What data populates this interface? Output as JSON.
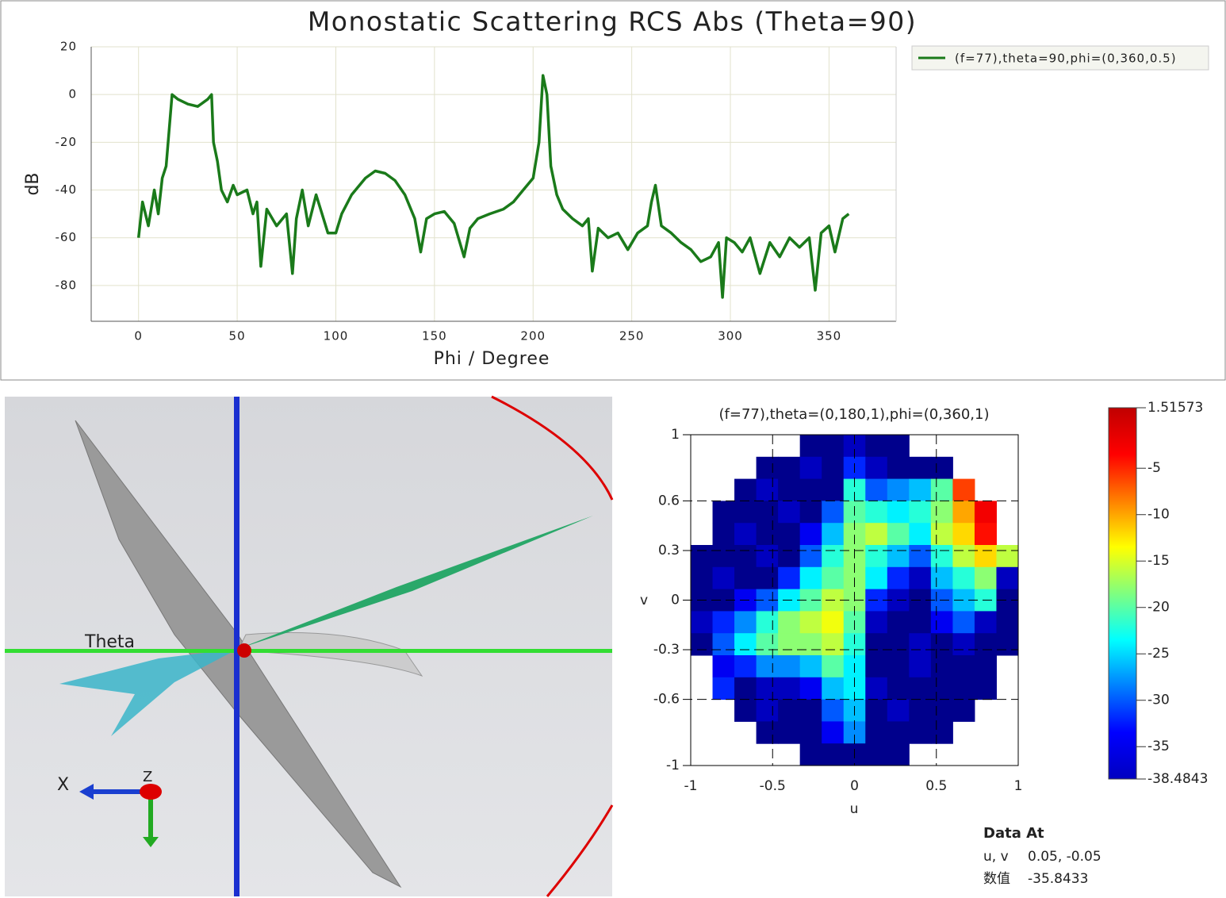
{
  "chart_data": [
    {
      "type": "line",
      "title": "Monostatic Scattering RCS Abs (Theta=90)",
      "x_label": "Phi / Degree",
      "y_label": "dB",
      "x": [
        0,
        2,
        5,
        8,
        10,
        12,
        14,
        16,
        17,
        20,
        25,
        30,
        35,
        37,
        38,
        40,
        42,
        45,
        48,
        50,
        55,
        58,
        60,
        62,
        65,
        70,
        75,
        78,
        80,
        83,
        86,
        90,
        93,
        96,
        100,
        103,
        108,
        115,
        120,
        125,
        130,
        135,
        140,
        143,
        146,
        150,
        155,
        160,
        165,
        168,
        172,
        178,
        185,
        190,
        195,
        200,
        203,
        205,
        207,
        209,
        212,
        215,
        220,
        225,
        228,
        230,
        233,
        238,
        243,
        248,
        253,
        258,
        260,
        262,
        265,
        270,
        275,
        280,
        285,
        290,
        294,
        296,
        298,
        302,
        306,
        310,
        315,
        320,
        325,
        330,
        335,
        340,
        343,
        346,
        350,
        353,
        357,
        360
      ],
      "series": [
        {
          "name": "(f=77),theta=90,phi=(0,360,0.5)",
          "color": "#1a7a1a",
          "values": [
            -60,
            -45,
            -55,
            -40,
            -50,
            -35,
            -30,
            -10,
            0,
            -2,
            -4,
            -5,
            -2,
            0,
            -20,
            -28,
            -40,
            -45,
            -38,
            -42,
            -40,
            -50,
            -45,
            -72,
            -48,
            -55,
            -50,
            -75,
            -52,
            -40,
            -55,
            -42,
            -50,
            -58,
            -58,
            -50,
            -42,
            -35,
            -32,
            -33,
            -36,
            -42,
            -52,
            -66,
            -52,
            -50,
            -49,
            -54,
            -68,
            -56,
            -52,
            -50,
            -48,
            -45,
            -40,
            -35,
            -20,
            8,
            0,
            -30,
            -42,
            -48,
            -52,
            -55,
            -52,
            -74,
            -56,
            -60,
            -58,
            -65,
            -58,
            -55,
            -45,
            -38,
            -55,
            -58,
            -62,
            -65,
            -70,
            -68,
            -62,
            -85,
            -60,
            -62,
            -66,
            -60,
            -75,
            -62,
            -68,
            -60,
            -64,
            -60,
            -82,
            -58,
            -55,
            -66,
            -52,
            -50
          ]
        }
      ],
      "xlim": [
        -24,
        384
      ],
      "ylim": [
        -95,
        20
      ],
      "xticks": [
        0,
        50,
        100,
        150,
        200,
        250,
        300,
        350
      ],
      "yticks": [
        -80,
        -60,
        -40,
        -20,
        0,
        20
      ],
      "grid": true
    },
    {
      "type": "heatmap",
      "title": "(f=77),theta=(0,180,1),phi=(0,360,1)",
      "x_label": "u",
      "y_label": "v",
      "xlim": [
        -1,
        1
      ],
      "ylim": [
        -1,
        1
      ],
      "xticks": [
        -1,
        -0.5,
        0,
        0.5,
        1
      ],
      "yticks": [
        1,
        0.6,
        0.3,
        0,
        -0.3,
        -0.6,
        -1
      ],
      "z": [
        [
          null,
          null,
          null,
          null,
          null,
          -38,
          -38,
          -36,
          -38,
          -38,
          null,
          null,
          null,
          null,
          null
        ],
        [
          null,
          null,
          null,
          -38,
          -38,
          -36,
          -38,
          -32,
          -36,
          -38,
          -38,
          -38,
          null,
          null,
          null
        ],
        [
          null,
          null,
          -38,
          -36,
          -38,
          -38,
          -38,
          -22,
          -30,
          -28,
          -26,
          -20,
          -6,
          null,
          null
        ],
        [
          null,
          -38,
          -38,
          -38,
          -36,
          -38,
          -30,
          -20,
          -22,
          -24,
          -22,
          -18,
          -10,
          -3,
          null
        ],
        [
          null,
          -38,
          -36,
          -38,
          -38,
          -34,
          -26,
          -18,
          -16,
          -20,
          -24,
          -16,
          -12,
          -4,
          null
        ],
        [
          -38,
          -38,
          -38,
          -36,
          -38,
          -30,
          -22,
          -18,
          -22,
          -26,
          -30,
          -22,
          -16,
          -12,
          -16
        ],
        [
          -38,
          -36,
          -38,
          -38,
          -32,
          -24,
          -20,
          -18,
          -24,
          -32,
          -36,
          -26,
          -22,
          -18,
          -36
        ],
        [
          -38,
          -38,
          -34,
          -30,
          -24,
          -20,
          -16,
          -18,
          -32,
          -36,
          -38,
          -30,
          -26,
          -22,
          -38
        ],
        [
          -36,
          -32,
          -28,
          -22,
          -18,
          -16,
          -14,
          -20,
          -36,
          -38,
          -38,
          -34,
          -30,
          -36,
          -38
        ],
        [
          -38,
          -30,
          -24,
          -20,
          -18,
          -18,
          -16,
          -22,
          -38,
          -38,
          -36,
          -38,
          -36,
          -38,
          -38
        ],
        [
          null,
          -34,
          -32,
          -28,
          -28,
          -26,
          -20,
          -24,
          -38,
          -38,
          -36,
          -38,
          -38,
          -38,
          null
        ],
        [
          null,
          -32,
          -38,
          -36,
          -36,
          -34,
          -26,
          -24,
          -36,
          -38,
          -38,
          -38,
          -38,
          -38,
          null
        ],
        [
          null,
          null,
          -38,
          -36,
          -38,
          -38,
          -30,
          -26,
          -38,
          -36,
          -38,
          -38,
          -38,
          null,
          null
        ],
        [
          null,
          null,
          null,
          -38,
          -38,
          -38,
          -34,
          -28,
          -38,
          -38,
          -38,
          -38,
          null,
          null,
          null
        ],
        [
          null,
          null,
          null,
          null,
          null,
          -38,
          -38,
          -38,
          -38,
          -38,
          null,
          null,
          null,
          null,
          null
        ]
      ]
    },
    {
      "type": "colorbar",
      "clim": [
        -38.4843,
        1.51573
      ],
      "ticks": [
        1.51573,
        -5,
        -10,
        -15,
        -20,
        -25,
        -30,
        -35,
        -38.4843
      ]
    }
  ],
  "view3d": {
    "labels": [
      "Theta",
      "X",
      "Z"
    ]
  },
  "data_at": {
    "title": "Data At",
    "rows": [
      [
        "u, v",
        "0.05, -0.05"
      ],
      [
        "数值",
        "-35.8433"
      ]
    ]
  }
}
